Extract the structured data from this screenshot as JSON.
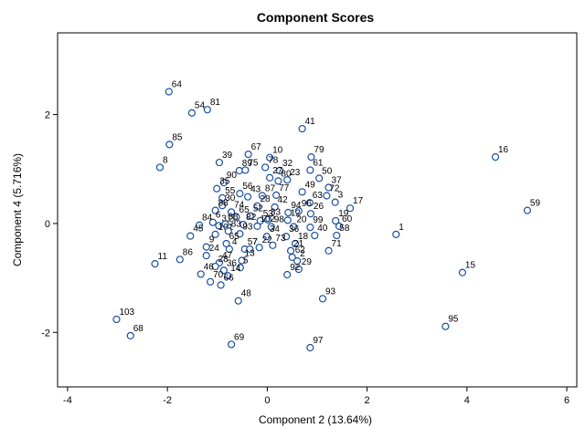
{
  "chart_data": {
    "type": "scatter",
    "title": "Component Scores",
    "xlabel": "Component 2 (13.64%)",
    "ylabel": "Component 4 (5.716%)",
    "xlim": [
      -4.2,
      6.2
    ],
    "ylim": [
      -3.0,
      3.5
    ],
    "x_ticks": [
      "-4",
      "-2",
      "0",
      "2",
      "4",
      "6"
    ],
    "y_ticks": [
      "2",
      "0",
      "-2"
    ],
    "grid": false,
    "marker_color": "#1a4fa3",
    "points": [
      {
        "label": "64",
        "x": -1.97,
        "y": 2.42
      },
      {
        "label": "54",
        "x": -1.51,
        "y": 2.03
      },
      {
        "label": "81",
        "x": -1.2,
        "y": 2.09
      },
      {
        "label": "41",
        "x": 0.7,
        "y": 1.74
      },
      {
        "label": "85",
        "x": -1.96,
        "y": 1.45
      },
      {
        "label": "16",
        "x": 4.57,
        "y": 1.22
      },
      {
        "label": "8",
        "x": -2.15,
        "y": 1.03
      },
      {
        "label": "39",
        "x": -0.96,
        "y": 1.12
      },
      {
        "label": "67",
        "x": -0.38,
        "y": 1.27
      },
      {
        "label": "10",
        "x": 0.05,
        "y": 1.21
      },
      {
        "label": "79",
        "x": 0.88,
        "y": 1.22
      },
      {
        "label": "89",
        "x": -0.56,
        "y": 0.97
      },
      {
        "label": "75",
        "x": -0.44,
        "y": 0.98
      },
      {
        "label": "78",
        "x": -0.04,
        "y": 1.03
      },
      {
        "label": "32",
        "x": 0.25,
        "y": 0.97
      },
      {
        "label": "27",
        "x": 0.05,
        "y": 0.84
      },
      {
        "label": "61",
        "x": 0.86,
        "y": 0.98
      },
      {
        "label": "90",
        "x": -0.87,
        "y": 0.75
      },
      {
        "label": "80",
        "x": 0.22,
        "y": 0.78
      },
      {
        "label": "23",
        "x": 0.4,
        "y": 0.8
      },
      {
        "label": "50",
        "x": 1.04,
        "y": 0.83
      },
      {
        "label": "35",
        "x": -1.01,
        "y": 0.64
      },
      {
        "label": "37",
        "x": 1.23,
        "y": 0.66
      },
      {
        "label": "49",
        "x": 0.7,
        "y": 0.58
      },
      {
        "label": "55",
        "x": -0.9,
        "y": 0.47
      },
      {
        "label": "56",
        "x": -0.55,
        "y": 0.55
      },
      {
        "label": "43",
        "x": -0.39,
        "y": 0.49
      },
      {
        "label": "87",
        "x": -0.1,
        "y": 0.51
      },
      {
        "label": "77",
        "x": 0.18,
        "y": 0.52
      },
      {
        "label": "63",
        "x": 0.85,
        "y": 0.38
      },
      {
        "label": "72",
        "x": 1.19,
        "y": 0.51
      },
      {
        "label": "3",
        "x": 1.36,
        "y": 0.39
      },
      {
        "label": "17",
        "x": 1.66,
        "y": 0.28
      },
      {
        "label": "59",
        "x": 5.21,
        "y": 0.24
      },
      {
        "label": "30",
        "x": -0.9,
        "y": 0.33
      },
      {
        "label": "88",
        "x": -1.04,
        "y": 0.24
      },
      {
        "label": "74",
        "x": -0.72,
        "y": 0.21
      },
      {
        "label": "28",
        "x": -0.2,
        "y": 0.32
      },
      {
        "label": "42",
        "x": 0.15,
        "y": 0.3
      },
      {
        "label": "96",
        "x": 0.63,
        "y": 0.23
      },
      {
        "label": "94",
        "x": 0.42,
        "y": 0.2
      },
      {
        "label": "26",
        "x": 0.87,
        "y": 0.18
      },
      {
        "label": "52",
        "x": -0.34,
        "y": 0.14
      },
      {
        "label": "33",
        "x": 0.01,
        "y": 0.07
      },
      {
        "label": "12",
        "x": 0.41,
        "y": 0.06
      },
      {
        "label": "19",
        "x": 1.37,
        "y": 0.05
      },
      {
        "label": "65",
        "x": -0.62,
        "y": 0.12
      },
      {
        "label": "6",
        "x": -1.09,
        "y": 0.02
      },
      {
        "label": "53",
        "x": -0.14,
        "y": 0.05
      },
      {
        "label": "31",
        "x": -0.97,
        "y": -0.04
      },
      {
        "label": "84",
        "x": -1.36,
        "y": -0.03
      },
      {
        "label": "38",
        "x": -0.84,
        "y": -0.01
      },
      {
        "label": "82",
        "x": -0.48,
        "y": -0.02
      },
      {
        "label": "102",
        "x": -0.2,
        "y": -0.05
      },
      {
        "label": "98",
        "x": 0.08,
        "y": -0.06
      },
      {
        "label": "20",
        "x": 0.53,
        "y": -0.06
      },
      {
        "label": "99",
        "x": 0.86,
        "y": -0.07
      },
      {
        "label": "60",
        "x": 1.44,
        "y": -0.05
      },
      {
        "label": "1",
        "x": 2.58,
        "y": -0.2
      },
      {
        "label": "101",
        "x": -1.04,
        "y": -0.2
      },
      {
        "label": "83",
        "x": -0.78,
        "y": -0.14
      },
      {
        "label": "93",
        "x": -0.55,
        "y": -0.19
      },
      {
        "label": "45",
        "x": -1.54,
        "y": -0.23
      },
      {
        "label": "34",
        "x": -0.01,
        "y": -0.24
      },
      {
        "label": "36",
        "x": 0.38,
        "y": -0.24
      },
      {
        "label": "40",
        "x": 0.95,
        "y": -0.22
      },
      {
        "label": "58",
        "x": 1.39,
        "y": -0.22
      },
      {
        "label": "65",
        "x": -0.82,
        "y": -0.37
      },
      {
        "label": "9",
        "x": -1.22,
        "y": -0.43
      },
      {
        "label": "4",
        "x": -0.76,
        "y": -0.47
      },
      {
        "label": "57",
        "x": -0.45,
        "y": -0.47
      },
      {
        "label": "7",
        "x": -0.35,
        "y": -0.47
      },
      {
        "label": "22",
        "x": -0.16,
        "y": -0.44
      },
      {
        "label": "73",
        "x": 0.11,
        "y": -0.4
      },
      {
        "label": "18",
        "x": 0.56,
        "y": -0.37
      },
      {
        "label": "21",
        "x": 0.47,
        "y": -0.5
      },
      {
        "label": "71",
        "x": 1.23,
        "y": -0.5
      },
      {
        "label": "11",
        "x": -2.25,
        "y": -0.74
      },
      {
        "label": "86",
        "x": -1.75,
        "y": -0.66
      },
      {
        "label": "24",
        "x": -1.22,
        "y": -0.59
      },
      {
        "label": "13",
        "x": -0.51,
        "y": -0.68
      },
      {
        "label": "47",
        "x": -0.96,
        "y": -0.72
      },
      {
        "label": "62",
        "x": 0.5,
        "y": -0.62
      },
      {
        "label": "2",
        "x": 0.6,
        "y": -0.69
      },
      {
        "label": "28",
        "x": -1.04,
        "y": -0.79
      },
      {
        "label": "36",
        "x": -0.87,
        "y": -0.86
      },
      {
        "label": "5",
        "x": -0.54,
        "y": -0.81
      },
      {
        "label": "29",
        "x": 0.63,
        "y": -0.84
      },
      {
        "label": "46",
        "x": -1.33,
        "y": -0.93
      },
      {
        "label": "70",
        "x": -1.14,
        "y": -1.07
      },
      {
        "label": "14",
        "x": -0.79,
        "y": -0.96
      },
      {
        "label": "92",
        "x": 0.4,
        "y": -0.94
      },
      {
        "label": "66",
        "x": -0.93,
        "y": -1.13
      },
      {
        "label": "15",
        "x": 3.91,
        "y": -0.9
      },
      {
        "label": "48",
        "x": -0.58,
        "y": -1.42
      },
      {
        "label": "93",
        "x": 1.11,
        "y": -1.38
      },
      {
        "label": "103",
        "x": -3.02,
        "y": -1.76
      },
      {
        "label": "95",
        "x": 3.57,
        "y": -1.89
      },
      {
        "label": "68",
        "x": -2.74,
        "y": -2.06
      },
      {
        "label": "69",
        "x": -0.72,
        "y": -2.22
      },
      {
        "label": "97",
        "x": 0.86,
        "y": -2.28
      }
    ]
  }
}
